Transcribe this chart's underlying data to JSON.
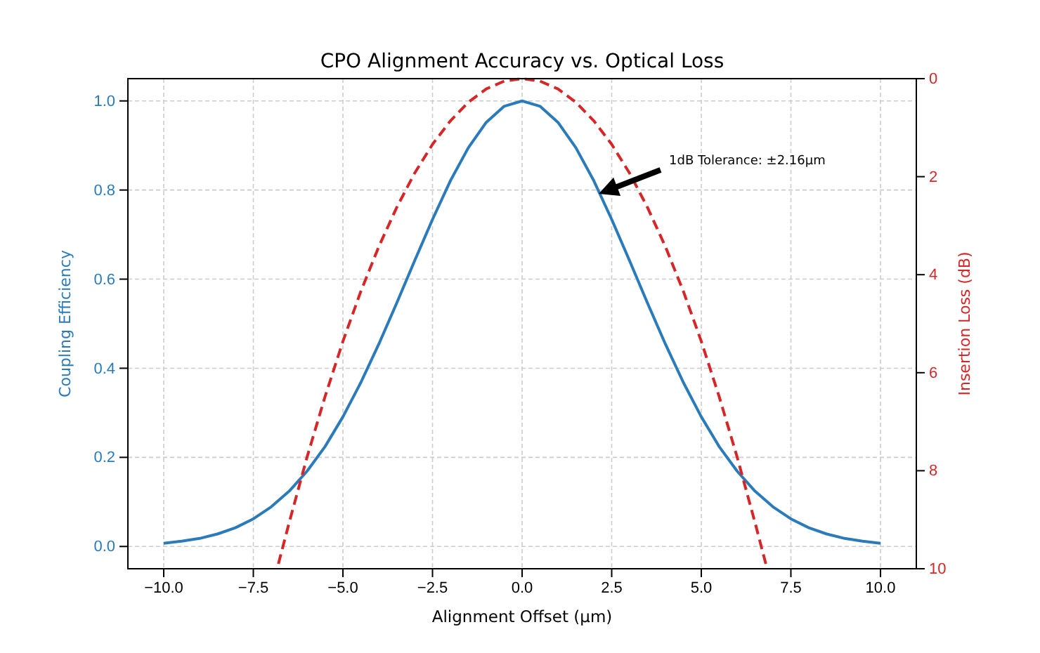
{
  "chart_data": {
    "type": "line",
    "title": "CPO Alignment Accuracy vs. Optical Loss",
    "xlabel": "Alignment Offset (μm)",
    "ylabel": "Coupling Efficiency",
    "y2label": "Insertion Loss (dB)",
    "xlim": [
      -11,
      11
    ],
    "xticks": [
      {
        "value": -10,
        "label": "−10.0"
      },
      {
        "value": -7.5,
        "label": "−7.5"
      },
      {
        "value": -5,
        "label": "−5.0"
      },
      {
        "value": -2.5,
        "label": "−2.5"
      },
      {
        "value": 0,
        "label": "0.0"
      },
      {
        "value": 2.5,
        "label": "2.5"
      },
      {
        "value": 5,
        "label": "5.0"
      },
      {
        "value": 7.5,
        "label": "7.5"
      },
      {
        "value": 10,
        "label": "10.0"
      }
    ],
    "ylim": [
      -0.05,
      1.05
    ],
    "yticks": [
      {
        "value": 0,
        "label": "0.0"
      },
      {
        "value": 0.2,
        "label": "0.2"
      },
      {
        "value": 0.4,
        "label": "0.4"
      },
      {
        "value": 0.6,
        "label": "0.6"
      },
      {
        "value": 0.8,
        "label": "0.8"
      },
      {
        "value": 1,
        "label": "1.0"
      }
    ],
    "y2lim": [
      10,
      0
    ],
    "y2ticks": [
      0,
      2,
      4,
      6,
      8,
      10
    ],
    "grid": true,
    "series": [
      {
        "color": "#2b7bba",
        "line_style": "solid",
        "x": [
          -10,
          -9.5,
          -9,
          -8.5,
          -8,
          -7.5,
          -7,
          -6.5,
          -6,
          -5.5,
          -5,
          -4.5,
          -4,
          -3.5,
          -3,
          -2.5,
          -2,
          -1.5,
          -1,
          -0.5,
          0,
          0.5,
          1,
          1.5,
          2,
          2.5,
          3,
          3.5,
          4,
          4.5,
          5,
          5.5,
          6,
          6.5,
          7,
          7.5,
          8,
          8.5,
          9,
          9.5,
          10
        ],
        "values": [
          0.007,
          0.012,
          0.018,
          0.028,
          0.042,
          0.062,
          0.089,
          0.124,
          0.169,
          0.224,
          0.291,
          0.368,
          0.454,
          0.546,
          0.641,
          0.734,
          0.821,
          0.895,
          0.952,
          0.988,
          1,
          0.988,
          0.952,
          0.895,
          0.821,
          0.734,
          0.641,
          0.546,
          0.454,
          0.368,
          0.291,
          0.224,
          0.169,
          0.124,
          0.089,
          0.062,
          0.042,
          0.028,
          0.018,
          0.012,
          0.007
        ]
      },
      {
        "color": "#d62728",
        "line_style": "dashed",
        "axis": "y2",
        "x": [
          -6.8,
          -6.5,
          -6,
          -5.5,
          -5,
          -4.5,
          -4,
          -3.5,
          -3,
          -2.5,
          -2,
          -1.5,
          -1,
          -0.5,
          0,
          0.5,
          1,
          1.5,
          2,
          2.5,
          3,
          3.5,
          4,
          4.5,
          5,
          5.5,
          6,
          6.5,
          6.8
        ],
        "values": [
          9.9,
          9.06,
          7.72,
          6.49,
          5.36,
          4.34,
          3.43,
          2.63,
          1.93,
          1.34,
          0.86,
          0.48,
          0.21,
          0.05,
          0,
          0.05,
          0.21,
          0.48,
          0.86,
          1.34,
          1.93,
          2.63,
          3.43,
          4.34,
          5.36,
          6.49,
          7.72,
          9.06,
          9.9
        ]
      }
    ],
    "annotations": [
      "1dB Tolerance: ±2.16μm"
    ]
  }
}
